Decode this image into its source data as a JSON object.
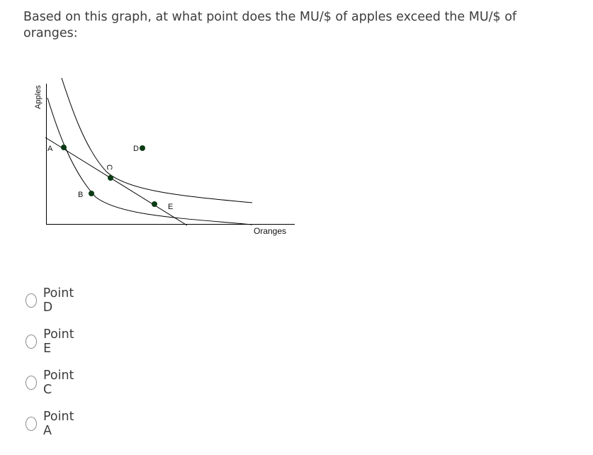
{
  "question": {
    "text": "Based on this graph, at what point does the MU/$ of apples exceed the MU/$ of oranges:"
  },
  "graph": {
    "y_axis_label": "Apples",
    "x_axis_label": "Oranges",
    "points": [
      {
        "label": "A"
      },
      {
        "label": "B"
      },
      {
        "label": "C"
      },
      {
        "label": "D"
      },
      {
        "label": "E"
      }
    ]
  },
  "options": [
    {
      "label": "Point D"
    },
    {
      "label": "Point E"
    },
    {
      "label": "Point C"
    },
    {
      "label": "Point A"
    }
  ]
}
